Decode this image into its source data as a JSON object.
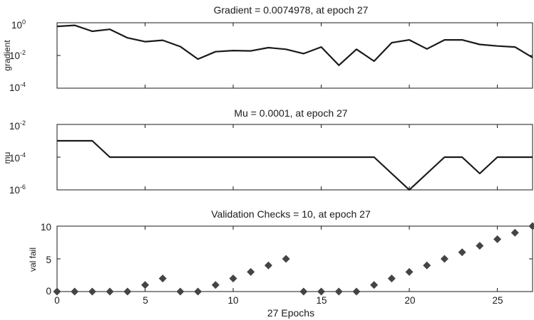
{
  "chart_data": [
    {
      "type": "line",
      "title": "Gradient = 0.0074978, at epoch 27",
      "ylabel": "gradient",
      "yscale": "log",
      "ylim": [
        0.0001,
        1
      ],
      "xlim": [
        0,
        27
      ],
      "yticks": [
        {
          "base": "10",
          "exp": "0"
        },
        {
          "base": "10",
          "exp": "-2"
        },
        {
          "base": "10",
          "exp": "-4"
        }
      ],
      "x": [
        0,
        1,
        2,
        3,
        4,
        5,
        6,
        7,
        8,
        9,
        10,
        11,
        12,
        13,
        14,
        15,
        16,
        17,
        18,
        19,
        20,
        21,
        22,
        23,
        24,
        25,
        26,
        27
      ],
      "values": [
        0.6,
        0.7,
        0.3,
        0.4,
        0.12,
        0.07,
        0.085,
        0.035,
        0.006,
        0.017,
        0.02,
        0.019,
        0.03,
        0.024,
        0.013,
        0.033,
        0.0025,
        0.024,
        0.0045,
        0.06,
        0.09,
        0.025,
        0.09,
        0.09,
        0.047,
        0.038,
        0.033,
        0.0075
      ]
    },
    {
      "type": "line",
      "title": "Mu = 0.0001, at epoch 27",
      "ylabel": "mu",
      "yscale": "log",
      "ylim": [
        1e-06,
        0.01
      ],
      "xlim": [
        0,
        27
      ],
      "yticks": [
        {
          "base": "10",
          "exp": "-2"
        },
        {
          "base": "10",
          "exp": "-4"
        },
        {
          "base": "10",
          "exp": "-6"
        }
      ],
      "x": [
        0,
        1,
        2,
        3,
        4,
        5,
        6,
        7,
        8,
        9,
        10,
        11,
        12,
        13,
        14,
        15,
        16,
        17,
        18,
        19,
        20,
        21,
        22,
        23,
        24,
        25,
        26,
        27
      ],
      "values": [
        0.001,
        0.001,
        0.001,
        0.0001,
        0.0001,
        0.0001,
        0.0001,
        0.0001,
        0.0001,
        0.0001,
        0.0001,
        0.0001,
        0.0001,
        0.0001,
        0.0001,
        0.0001,
        0.0001,
        0.0001,
        0.0001,
        1e-05,
        1e-06,
        1e-05,
        0.0001,
        0.0001,
        1e-05,
        0.0001,
        0.0001,
        0.0001
      ]
    },
    {
      "type": "scatter",
      "title": "Validation Checks = 10, at epoch 27",
      "ylabel": "val fail",
      "xlabel": "27 Epochs",
      "ylim": [
        0,
        10
      ],
      "xlim": [
        0,
        27
      ],
      "yticks": [
        "10",
        "5",
        "0"
      ],
      "xticks": [
        "0",
        "5",
        "10",
        "15",
        "20",
        "25"
      ],
      "x": [
        0,
        1,
        2,
        3,
        4,
        5,
        6,
        7,
        8,
        9,
        10,
        11,
        12,
        13,
        14,
        15,
        16,
        17,
        18,
        19,
        20,
        21,
        22,
        23,
        24,
        25,
        26,
        27
      ],
      "values": [
        0,
        0,
        0,
        0,
        0,
        1,
        2,
        0,
        0,
        1,
        2,
        3,
        4,
        5,
        0,
        0,
        0,
        0,
        1,
        2,
        3,
        4,
        5,
        6,
        7,
        8,
        9,
        10
      ]
    }
  ]
}
